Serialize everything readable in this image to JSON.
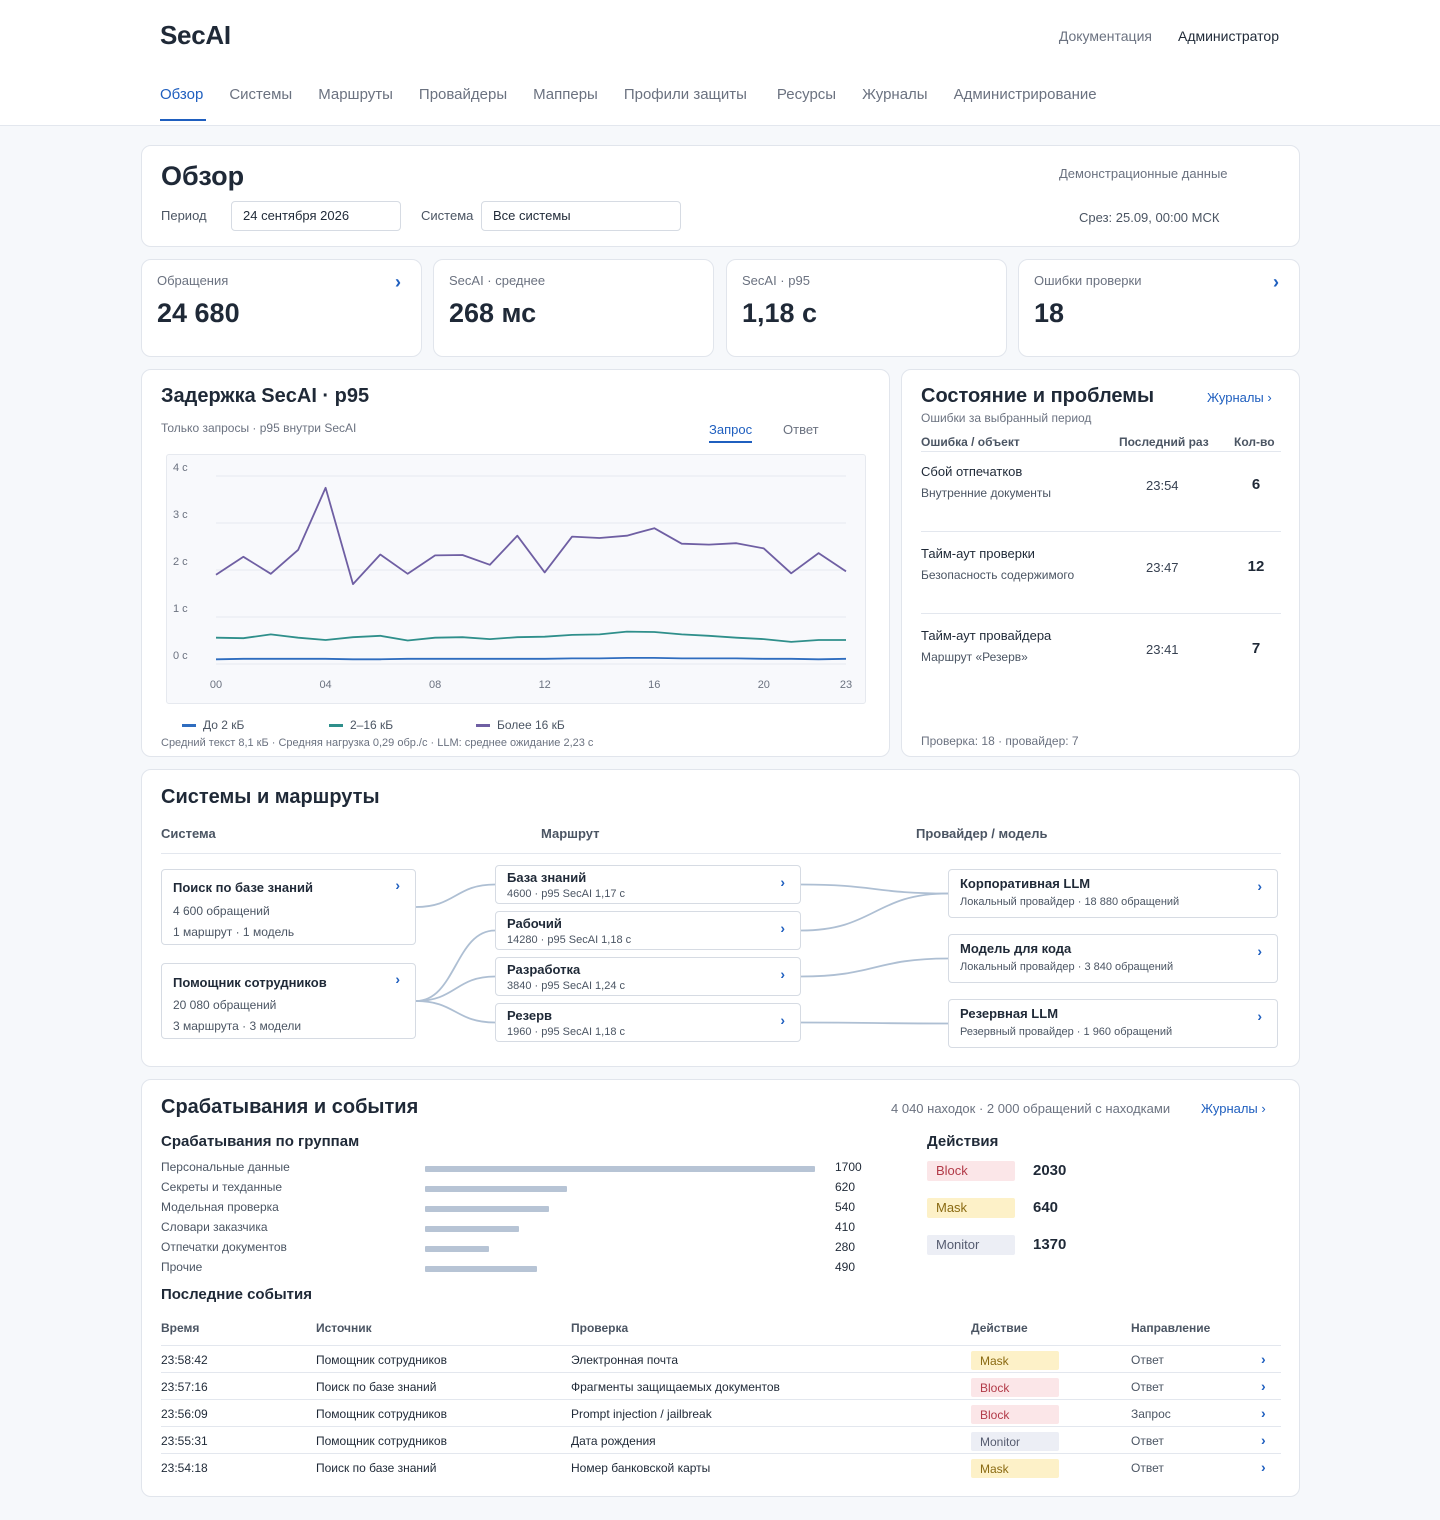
{
  "app": {
    "brand": "SecAI",
    "links": {
      "docs": "Документация",
      "admin": "Администратор"
    },
    "tabs": [
      "Обзор",
      "Системы",
      "Маршруты",
      "Провайдеры",
      "Мапперы",
      "Профили защиты",
      "Ресурсы",
      "Журналы",
      "Администрирование"
    ],
    "active_tab": "Обзор"
  },
  "overview": {
    "title": "Обзор",
    "period_label": "Период",
    "period_value": "24 сентября 2026",
    "system_label": "Система",
    "system_value": "Все системы",
    "demo_note": "Демонстрационные данные",
    "snapshot": "Срез: 25.09, 00:00 МСК"
  },
  "kpis": [
    {
      "label": "Обращения",
      "value": "24 680",
      "has_link": true
    },
    {
      "label": "SecAI · среднее",
      "value": "268 мс",
      "has_link": false
    },
    {
      "label": "SecAI · p95",
      "value": "1,18 с",
      "has_link": false
    },
    {
      "label": "Ошибки проверки",
      "value": "18",
      "has_link": true
    }
  ],
  "latency": {
    "title": "Задержка SecAI · p95",
    "subtitle": "Только запросы · p95 внутри SecAI",
    "tabs": [
      "Запрос",
      "Ответ"
    ],
    "footer": "Средний текст 8,1 кБ · Средняя нагрузка 0,29 обр./с · LLM: среднее ожидание 2,23 с"
  },
  "chart_data": {
    "type": "line",
    "x": [
      0,
      1,
      2,
      3,
      4,
      5,
      6,
      7,
      8,
      9,
      10,
      11,
      12,
      13,
      14,
      15,
      16,
      17,
      18,
      19,
      20,
      21,
      22,
      23
    ],
    "x_tick_labels": {
      "0": "00",
      "4": "04",
      "8": "08",
      "12": "12",
      "16": "16",
      "20": "20",
      "23": "23"
    },
    "y_tick_labels": [
      "0 с",
      "1 с",
      "2 с",
      "3 с",
      "4 с"
    ],
    "ylim": [
      0,
      4
    ],
    "grid": true,
    "legend_position": "bottom",
    "series": [
      {
        "name": "До 2 кБ",
        "color": "#2f6dbf",
        "values": [
          0.1,
          0.11,
          0.11,
          0.11,
          0.11,
          0.1,
          0.1,
          0.11,
          0.11,
          0.11,
          0.11,
          0.11,
          0.11,
          0.12,
          0.12,
          0.13,
          0.13,
          0.12,
          0.12,
          0.12,
          0.11,
          0.11,
          0.1,
          0.11
        ]
      },
      {
        "name": "2–16 кБ",
        "color": "#2f8f8b",
        "values": [
          0.56,
          0.55,
          0.63,
          0.56,
          0.51,
          0.57,
          0.6,
          0.5,
          0.56,
          0.57,
          0.53,
          0.57,
          0.58,
          0.62,
          0.63,
          0.69,
          0.68,
          0.63,
          0.6,
          0.56,
          0.53,
          0.47,
          0.51,
          0.51
        ]
      },
      {
        "name": "Более 16 кБ",
        "color": "#6f5fa3",
        "values": [
          1.9,
          2.28,
          1.92,
          2.43,
          3.75,
          1.7,
          2.33,
          1.92,
          2.31,
          2.32,
          2.11,
          2.73,
          1.95,
          2.71,
          2.68,
          2.73,
          2.89,
          2.56,
          2.54,
          2.57,
          2.46,
          1.93,
          2.36,
          1.97
        ]
      }
    ]
  },
  "issues": {
    "title": "Состояние и проблемы",
    "subtitle": "Ошибки за выбранный период",
    "link": "Журналы ›",
    "headers": [
      "Ошибка / объект",
      "Последний раз",
      "Кол-во"
    ],
    "rows": [
      {
        "name": "Сбой отпечатков",
        "object": "Внутренние документы",
        "time": "23:54",
        "count": "6"
      },
      {
        "name": "Тайм-аут проверки",
        "object": "Безопасность содержимого",
        "time": "23:47",
        "count": "12"
      },
      {
        "name": "Тайм-аут провайдера",
        "object": "Маршрут «Резерв»",
        "time": "23:41",
        "count": "7"
      }
    ],
    "footer": "Проверка: 18 · провайдер: 7"
  },
  "flow": {
    "title": "Системы и маршруты",
    "headers": [
      "Система",
      "Маршрут",
      "Провайдер / модель"
    ],
    "systems": [
      {
        "name": "Поиск по базе знаний",
        "requests": "4 600 обращений",
        "summary": "1 маршрут · 1 модель"
      },
      {
        "name": "Помощник сотрудников",
        "requests": "20 080 обращений",
        "summary": "3 маршрута · 3 модели"
      }
    ],
    "routes": [
      {
        "name": "База знаний",
        "detail": "4600 · p95 SecAI 1,17 с"
      },
      {
        "name": "Рабочий",
        "detail": "14280 · p95 SecAI 1,18 с"
      },
      {
        "name": "Разработка",
        "detail": "3840 · p95 SecAI 1,24 с"
      },
      {
        "name": "Резерв",
        "detail": "1960 · p95 SecAI 1,18 с"
      }
    ],
    "providers": [
      {
        "name": "Корпоративная LLM",
        "detail": "Локальный провайдер · 18 880 обращений"
      },
      {
        "name": "Модель для кода",
        "detail": "Локальный провайдер · 3 840 обращений"
      },
      {
        "name": "Резервная LLM",
        "detail": "Резервный провайдер · 1 960 обращений"
      }
    ],
    "links_system_route": [
      [
        0,
        0
      ],
      [
        1,
        1
      ],
      [
        1,
        2
      ],
      [
        1,
        3
      ]
    ],
    "links_route_provider": [
      [
        0,
        0
      ],
      [
        1,
        0
      ],
      [
        2,
        1
      ],
      [
        3,
        2
      ]
    ]
  },
  "events": {
    "title": "Срабатывания и события",
    "summary": "4 040 находок · 2 000 обращений с находками",
    "link": "Журналы ›",
    "groups_title": "Срабатывания по группам",
    "groups": [
      {
        "label": "Персональные данные",
        "value": 1700
      },
      {
        "label": "Секреты и техданные",
        "value": 620
      },
      {
        "label": "Модельная проверка",
        "value": 540
      },
      {
        "label": "Словари заказчика",
        "value": 410
      },
      {
        "label": "Отпечатки документов",
        "value": 280
      },
      {
        "label": "Прочие",
        "value": 490
      }
    ],
    "actions_title": "Действия",
    "actions": [
      {
        "label": "Block",
        "value": "2030",
        "kind": "block"
      },
      {
        "label": "Mask",
        "value": "640",
        "kind": "mask"
      },
      {
        "label": "Monitor",
        "value": "1370",
        "kind": "monitor"
      }
    ],
    "recent_title": "Последние события",
    "columns": [
      "Время",
      "Источник",
      "Проверка",
      "Действие",
      "Направление"
    ],
    "rows": [
      {
        "time": "23:58:42",
        "source": "Помощник сотрудников",
        "check": "Электронная почта",
        "action": "Mask",
        "kind": "mask",
        "direction": "Ответ"
      },
      {
        "time": "23:57:16",
        "source": "Поиск по базе знаний",
        "check": "Фрагменты защищаемых документов",
        "action": "Block",
        "kind": "block",
        "direction": "Ответ"
      },
      {
        "time": "23:56:09",
        "source": "Помощник сотрудников",
        "check": "Prompt injection / jailbreak",
        "action": "Block",
        "kind": "block",
        "direction": "Запрос"
      },
      {
        "time": "23:55:31",
        "source": "Помощник сотрудников",
        "check": "Дата рождения",
        "action": "Monitor",
        "kind": "monitor",
        "direction": "Ответ"
      },
      {
        "time": "23:54:18",
        "source": "Поиск по базе знаний",
        "check": "Номер банковской карты",
        "action": "Mask",
        "kind": "mask",
        "direction": "Ответ"
      }
    ]
  },
  "icons": {
    "chevron": "chevron-right-icon",
    "chevron_glyph": "›"
  }
}
